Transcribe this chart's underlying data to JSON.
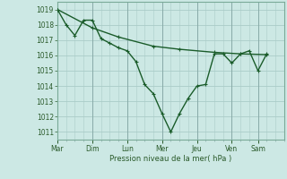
{
  "xlabel": "Pression niveau de la mer( hPa )",
  "background_color": "#cce8e4",
  "grid_color": "#aaccc8",
  "line_color": "#1a5c2a",
  "ylim": [
    1010.5,
    1019.5
  ],
  "yticks": [
    1011,
    1012,
    1013,
    1014,
    1015,
    1016,
    1017,
    1018,
    1019
  ],
  "xtick_labels": [
    "Mar",
    "Dim",
    "Lun",
    "Mer",
    "Jeu",
    "Ven",
    "Sam"
  ],
  "line1_x": [
    0.0,
    0.5,
    1.0,
    1.5,
    2.0,
    2.5,
    3.0,
    3.5,
    4.0,
    4.5,
    5.0,
    5.5,
    6.0,
    6.5,
    7.0,
    7.5,
    8.0,
    8.5,
    9.0,
    9.5,
    10.0,
    10.5,
    11.0,
    11.5,
    12.0
  ],
  "line1_y": [
    1019.0,
    1018.0,
    1017.3,
    1018.3,
    1018.3,
    1017.1,
    1016.8,
    1016.5,
    1016.3,
    1015.6,
    1014.1,
    1013.5,
    1012.2,
    1011.0,
    1012.2,
    1013.2,
    1014.0,
    1014.1,
    1016.1,
    1016.1,
    1015.5,
    1016.1,
    1016.3,
    1015.0,
    1016.1
  ],
  "line2_x": [
    0.0,
    2.0,
    3.5,
    5.5,
    7.0,
    9.0,
    10.5,
    12.0
  ],
  "line2_y": [
    1019.0,
    1017.8,
    1017.2,
    1016.6,
    1016.4,
    1016.2,
    1016.1,
    1016.05
  ],
  "marker_size": 2.5,
  "line_width": 1.0,
  "n_xdivs": 28
}
